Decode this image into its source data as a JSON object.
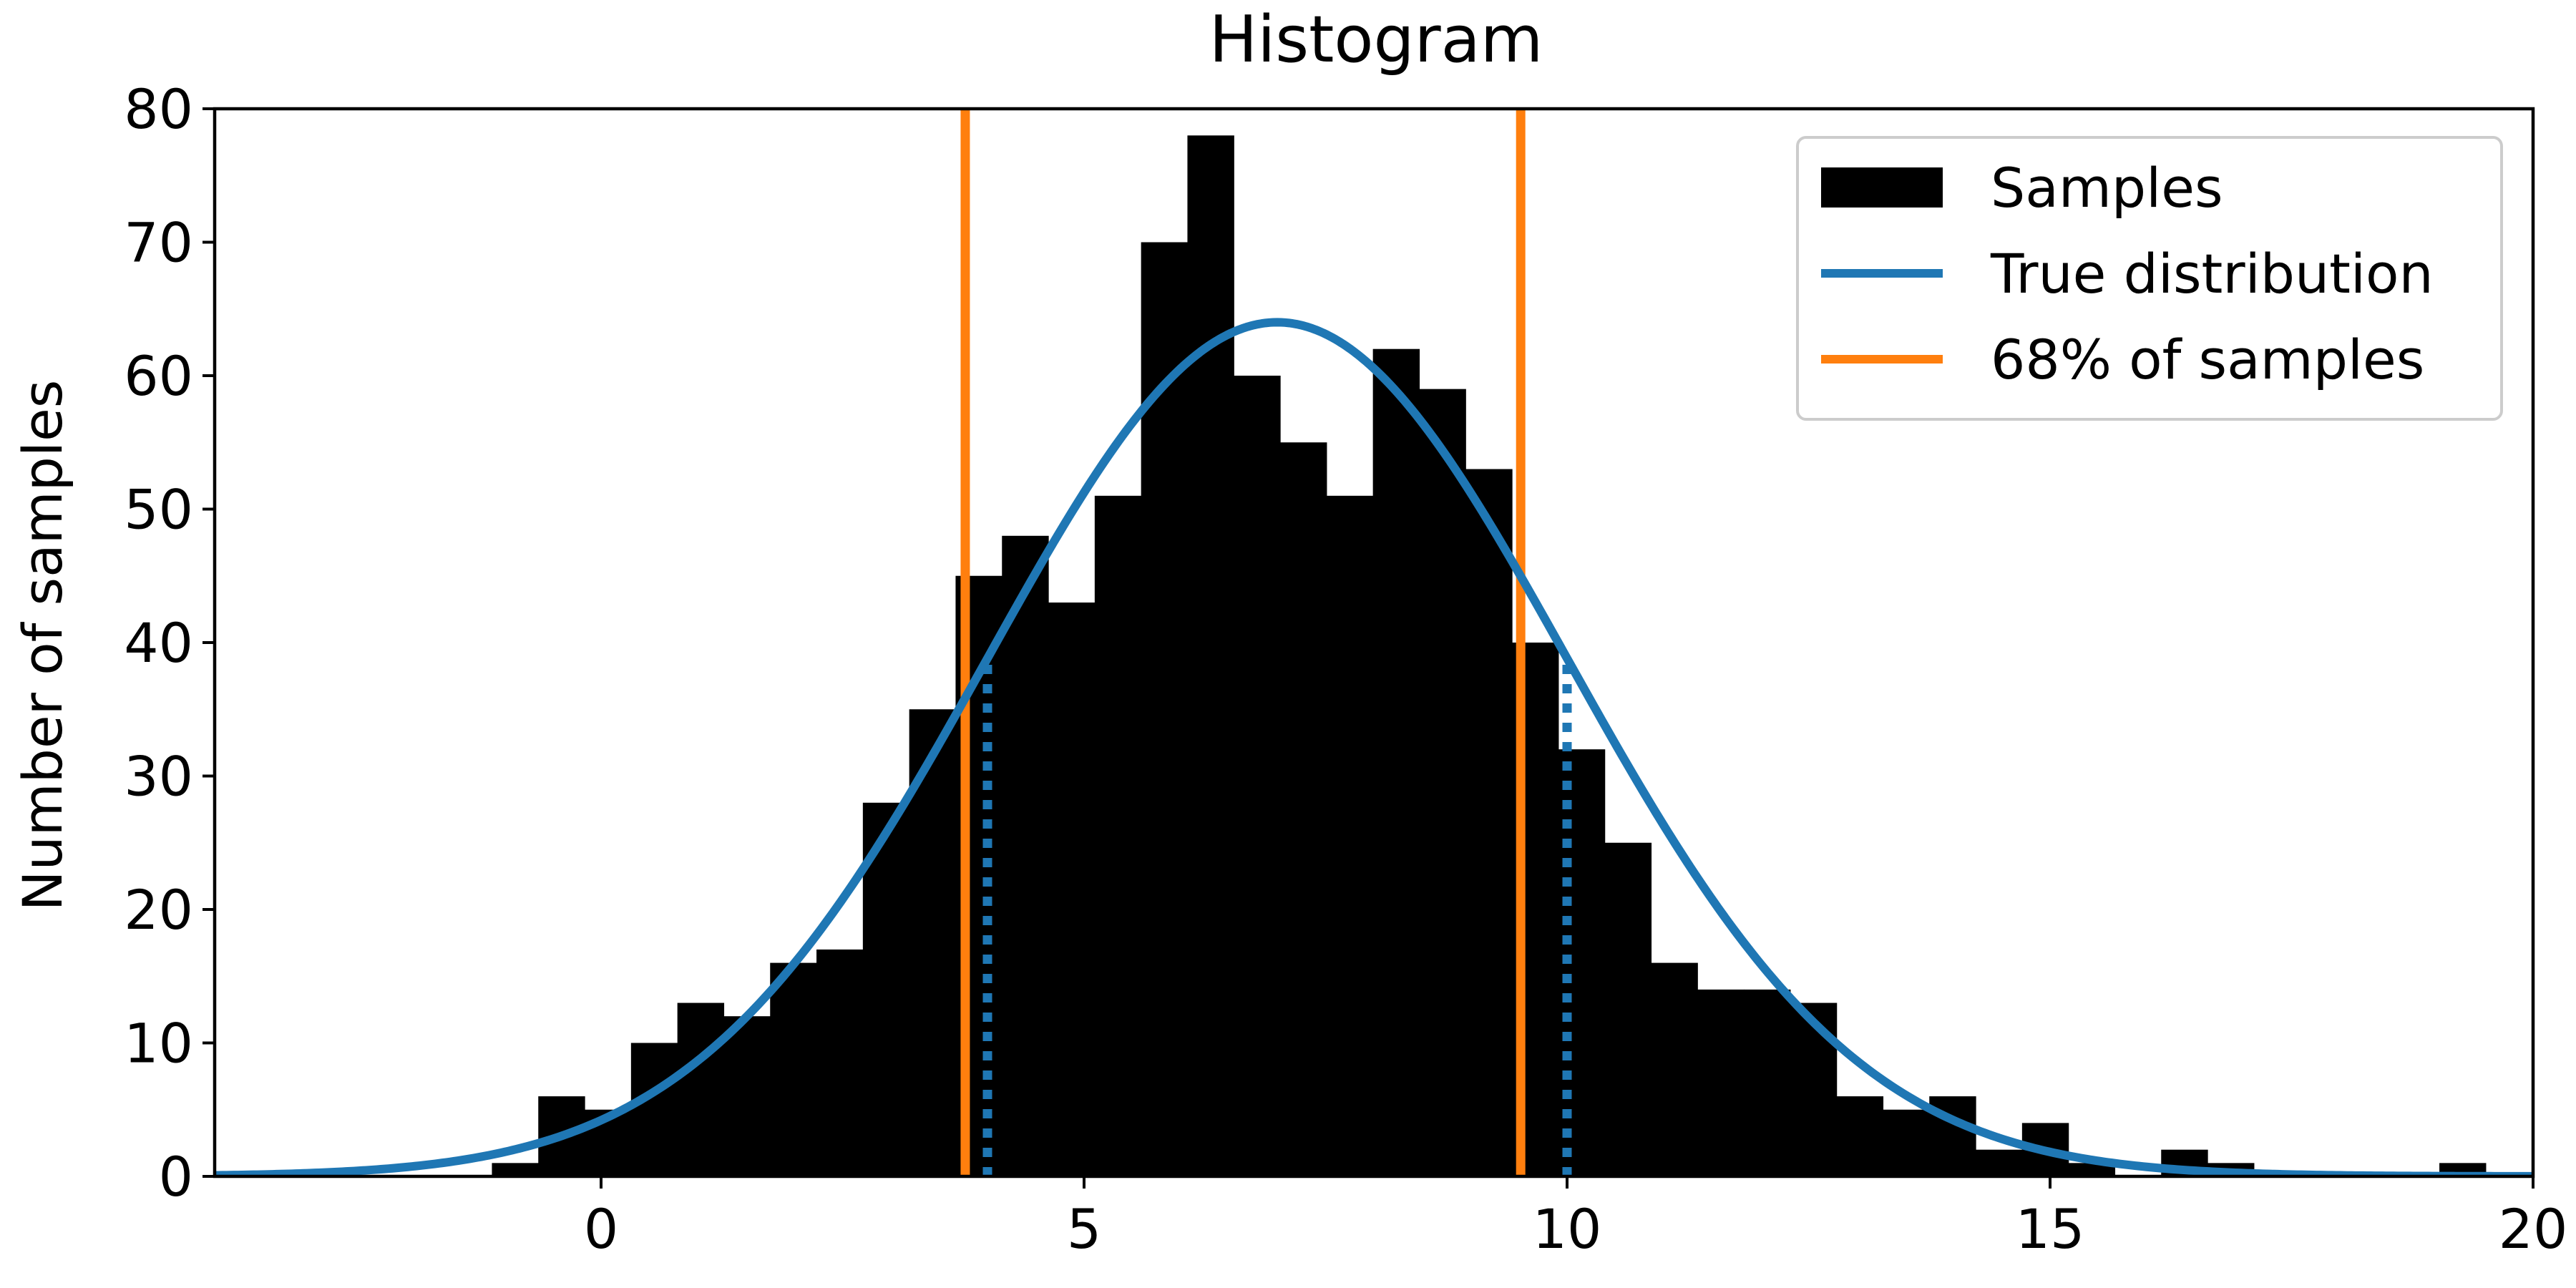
{
  "chart_data": {
    "type": "bar",
    "title": "Histogram",
    "xlabel": "",
    "ylabel": "Number of samples",
    "xlim": [
      -4,
      20
    ],
    "ylim": [
      0,
      80
    ],
    "x_ticks": [
      0,
      5,
      10,
      15,
      20
    ],
    "y_ticks": [
      0,
      10,
      20,
      30,
      40,
      50,
      60,
      70,
      80
    ],
    "grid": false,
    "legend_position": "top-right",
    "histogram": {
      "name": "Samples",
      "color": "#000000",
      "bin_start": -1.13,
      "bin_width": 0.48,
      "counts": [
        1,
        6,
        5,
        10,
        13,
        12,
        16,
        17,
        28,
        35,
        45,
        48,
        43,
        51,
        70,
        78,
        60,
        55,
        51,
        62,
        59,
        53,
        40,
        32,
        25,
        16,
        14,
        14,
        13,
        6,
        5,
        6,
        2,
        4,
        1,
        0,
        2,
        1,
        0,
        0,
        0,
        0,
        1
      ]
    },
    "true_distribution": {
      "name": "True distribution",
      "color": "#1f77b4",
      "mean": 7.0,
      "std": 3.0,
      "peak": 64.0
    },
    "reference_lines": {
      "name": "68% of samples",
      "color": "#ff7f0e",
      "x": [
        3.77,
        9.52
      ]
    },
    "dotted_lines": {
      "color": "#1f77b4",
      "x": [
        4.0,
        10.0
      ]
    }
  },
  "legend": {
    "items": [
      {
        "label": "Samples",
        "kind": "patch",
        "color": "#000000"
      },
      {
        "label": "True distribution",
        "kind": "line",
        "color": "#1f77b4"
      },
      {
        "label": "68% of samples",
        "kind": "line",
        "color": "#ff7f0e"
      }
    ]
  }
}
